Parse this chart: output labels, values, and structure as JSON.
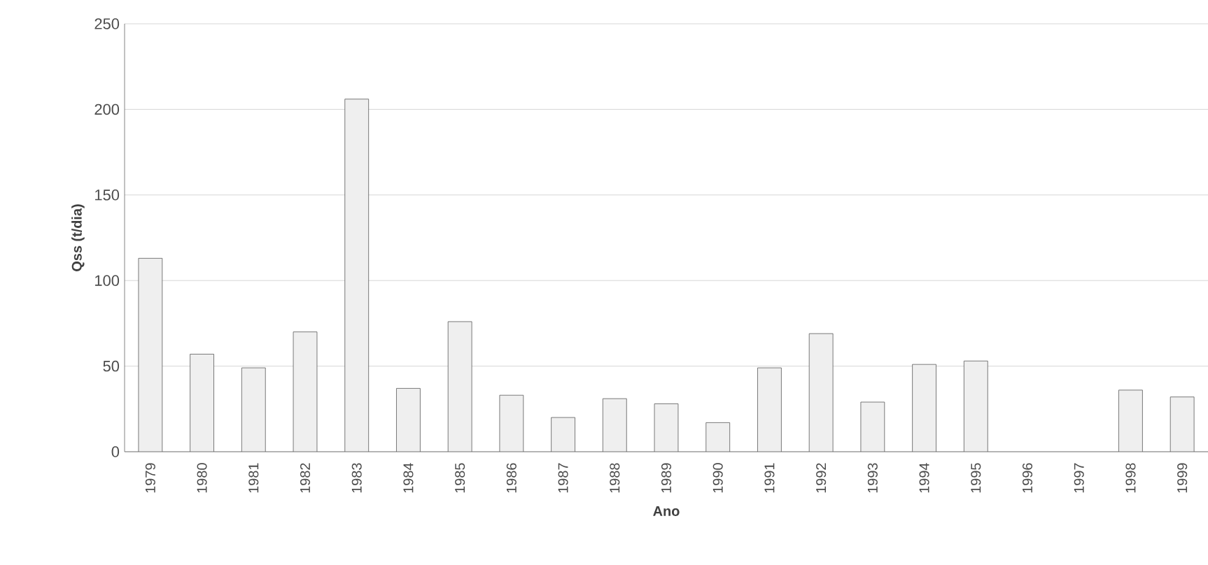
{
  "chart_data": {
    "type": "bar",
    "xlabel": "Ano",
    "ylabel": "Qss (t/dia)",
    "categories": [
      "1979",
      "1980",
      "1981",
      "1982",
      "1983",
      "1984",
      "1985",
      "1986",
      "1987",
      "1988",
      "1989",
      "1990",
      "1991",
      "1992",
      "1993",
      "1994",
      "1995",
      "1996",
      "1997",
      "1998",
      "1999"
    ],
    "values": [
      113,
      57,
      49,
      70,
      206,
      37,
      76,
      33,
      20,
      31,
      28,
      17,
      49,
      69,
      29,
      51,
      53,
      null,
      null,
      36,
      32
    ],
    "color": "#efefef",
    "ylim": [
      0,
      250
    ],
    "yticks": [
      0,
      50,
      100,
      150,
      200,
      250
    ],
    "grid": "y"
  }
}
